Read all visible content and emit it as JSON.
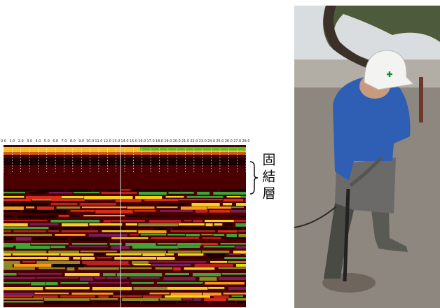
{
  "profile": {
    "distance_ticks": [
      "0.0",
      "1.0",
      "2.0",
      "3.0",
      "4.0",
      "5.0",
      "6.0",
      "7.0",
      "8.0",
      "9.0",
      "10.0",
      "11.0",
      "12.0",
      "13.0",
      "14.0",
      "15.0",
      "16.0",
      "17.0",
      "18.0",
      "19.0",
      "20.0",
      "21.0",
      "22.0",
      "23.0",
      "24.0",
      "25.0",
      "26.0",
      "27.0",
      "28.0"
    ]
  },
  "annotation": {
    "characters": [
      "固",
      "結",
      "層"
    ]
  }
}
